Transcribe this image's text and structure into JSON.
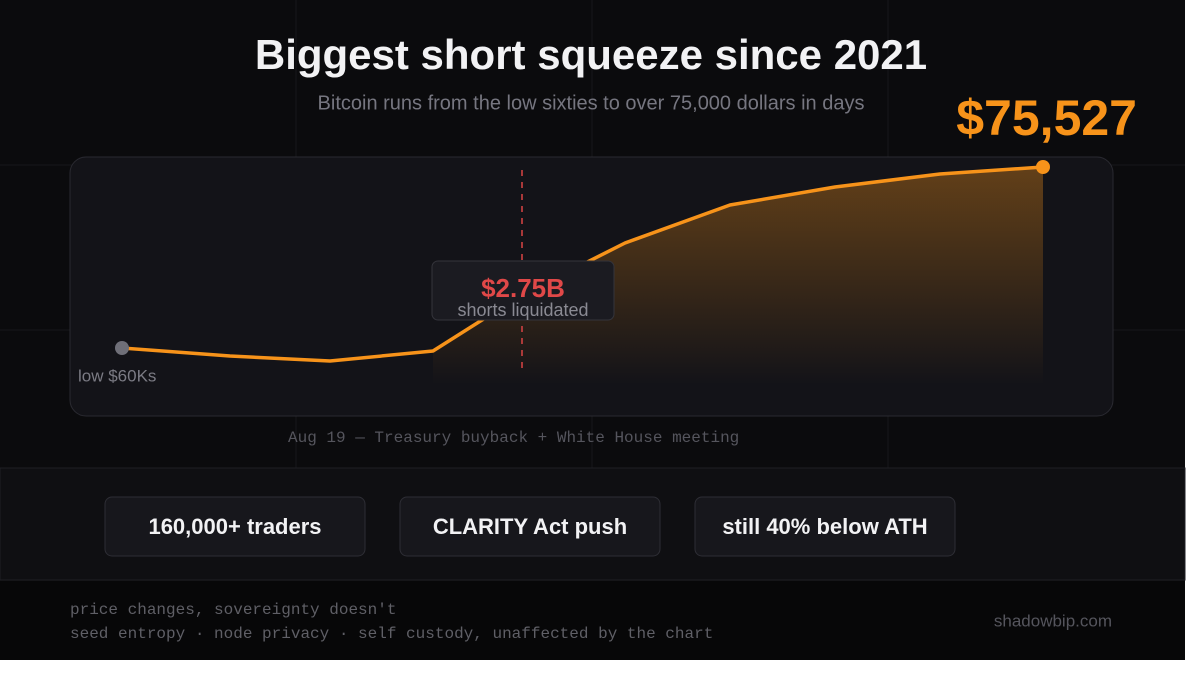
{
  "header": {
    "title": "Biggest short squeeze since 2021",
    "subtitle": "Bitcoin runs from the low sixties to over 75,000 dollars in days"
  },
  "highlight": {
    "price": "$75,527"
  },
  "chart": {
    "callout": {
      "value": "$2.75B",
      "label": "shorts liquidated"
    },
    "start_label": "low $60Ks",
    "caption": "Aug 19 — Treasury buyback + White House meeting"
  },
  "stats": [
    "160,000+ traders",
    "CLARITY Act push",
    "still 40% below ATH"
  ],
  "footer": {
    "lines": [
      "price changes, sovereignty doesn't",
      "seed entropy · node privacy · self custody, unaffected by the chart"
    ],
    "site": "shadowbip.com"
  }
}
